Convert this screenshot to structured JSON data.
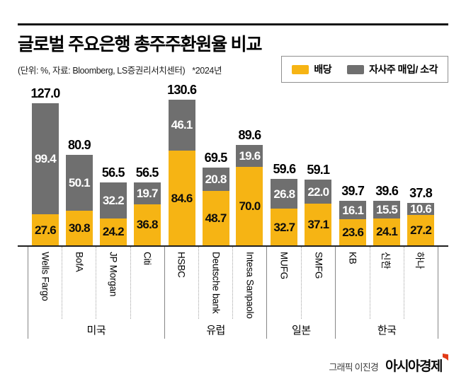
{
  "header": {
    "title": "글로벌 주요은행 총주주환원율 비교",
    "unit_source": "(단위: %, 자료: Bloomberg, LS증권리서치센터)",
    "year_note": "*2024년"
  },
  "legend": {
    "items": [
      {
        "label": "배당",
        "color": "#F6B414"
      },
      {
        "label": "자사주 매입/ 소각",
        "color": "#6F6F6F"
      }
    ]
  },
  "colors": {
    "dividend": "#F6B414",
    "buyback": "#6F6F6F",
    "axis": "#1F1F1F",
    "logo_mark_red": "#E23A17"
  },
  "chart_data": {
    "type": "bar",
    "stacked": true,
    "unit": "%",
    "title": "글로벌 주요은행 총주주환원율 비교",
    "legend": [
      "배당",
      "자사주 매입/ 소각"
    ],
    "ylim": [
      0,
      140
    ],
    "grid": false,
    "legend_position": "top-right",
    "groups": [
      {
        "region": "미국",
        "banks": [
          {
            "name": "Wells Fargo",
            "dividend": 27.6,
            "buyback": 99.4,
            "total": 127.0
          },
          {
            "name": "BofA",
            "dividend": 30.8,
            "buyback": 50.1,
            "total": 80.9
          },
          {
            "name": "JP Morgan",
            "dividend": 24.2,
            "buyback": 32.2,
            "total": 56.5
          },
          {
            "name": "Citi",
            "dividend": 36.8,
            "buyback": 19.7,
            "total": 56.5
          }
        ]
      },
      {
        "region": "유럽",
        "banks": [
          {
            "name": "HSBC",
            "dividend": 84.6,
            "buyback": 46.1,
            "total": 130.6
          },
          {
            "name": "Deutsche bank",
            "dividend": 48.7,
            "buyback": 20.8,
            "total": 69.5
          },
          {
            "name": "Intesa Sanpaolo",
            "dividend": 70.0,
            "buyback": 19.6,
            "total": 89.6
          }
        ]
      },
      {
        "region": "일본",
        "banks": [
          {
            "name": "MUFG",
            "dividend": 32.7,
            "buyback": 26.8,
            "total": 59.6
          },
          {
            "name": "SMFG",
            "dividend": 37.1,
            "buyback": 22.0,
            "total": 59.1
          }
        ]
      },
      {
        "region": "한국",
        "banks": [
          {
            "name": "KB",
            "dividend": 23.6,
            "buyback": 16.1,
            "total": 39.7
          },
          {
            "name": "신한",
            "dividend": 24.1,
            "buyback": 15.5,
            "total": 39.6
          },
          {
            "name": "하나",
            "dividend": 27.2,
            "buyback": 10.6,
            "total": 37.8
          }
        ]
      }
    ]
  },
  "footer": {
    "credit": "그래픽 이진경",
    "logo": "아시아경제"
  }
}
